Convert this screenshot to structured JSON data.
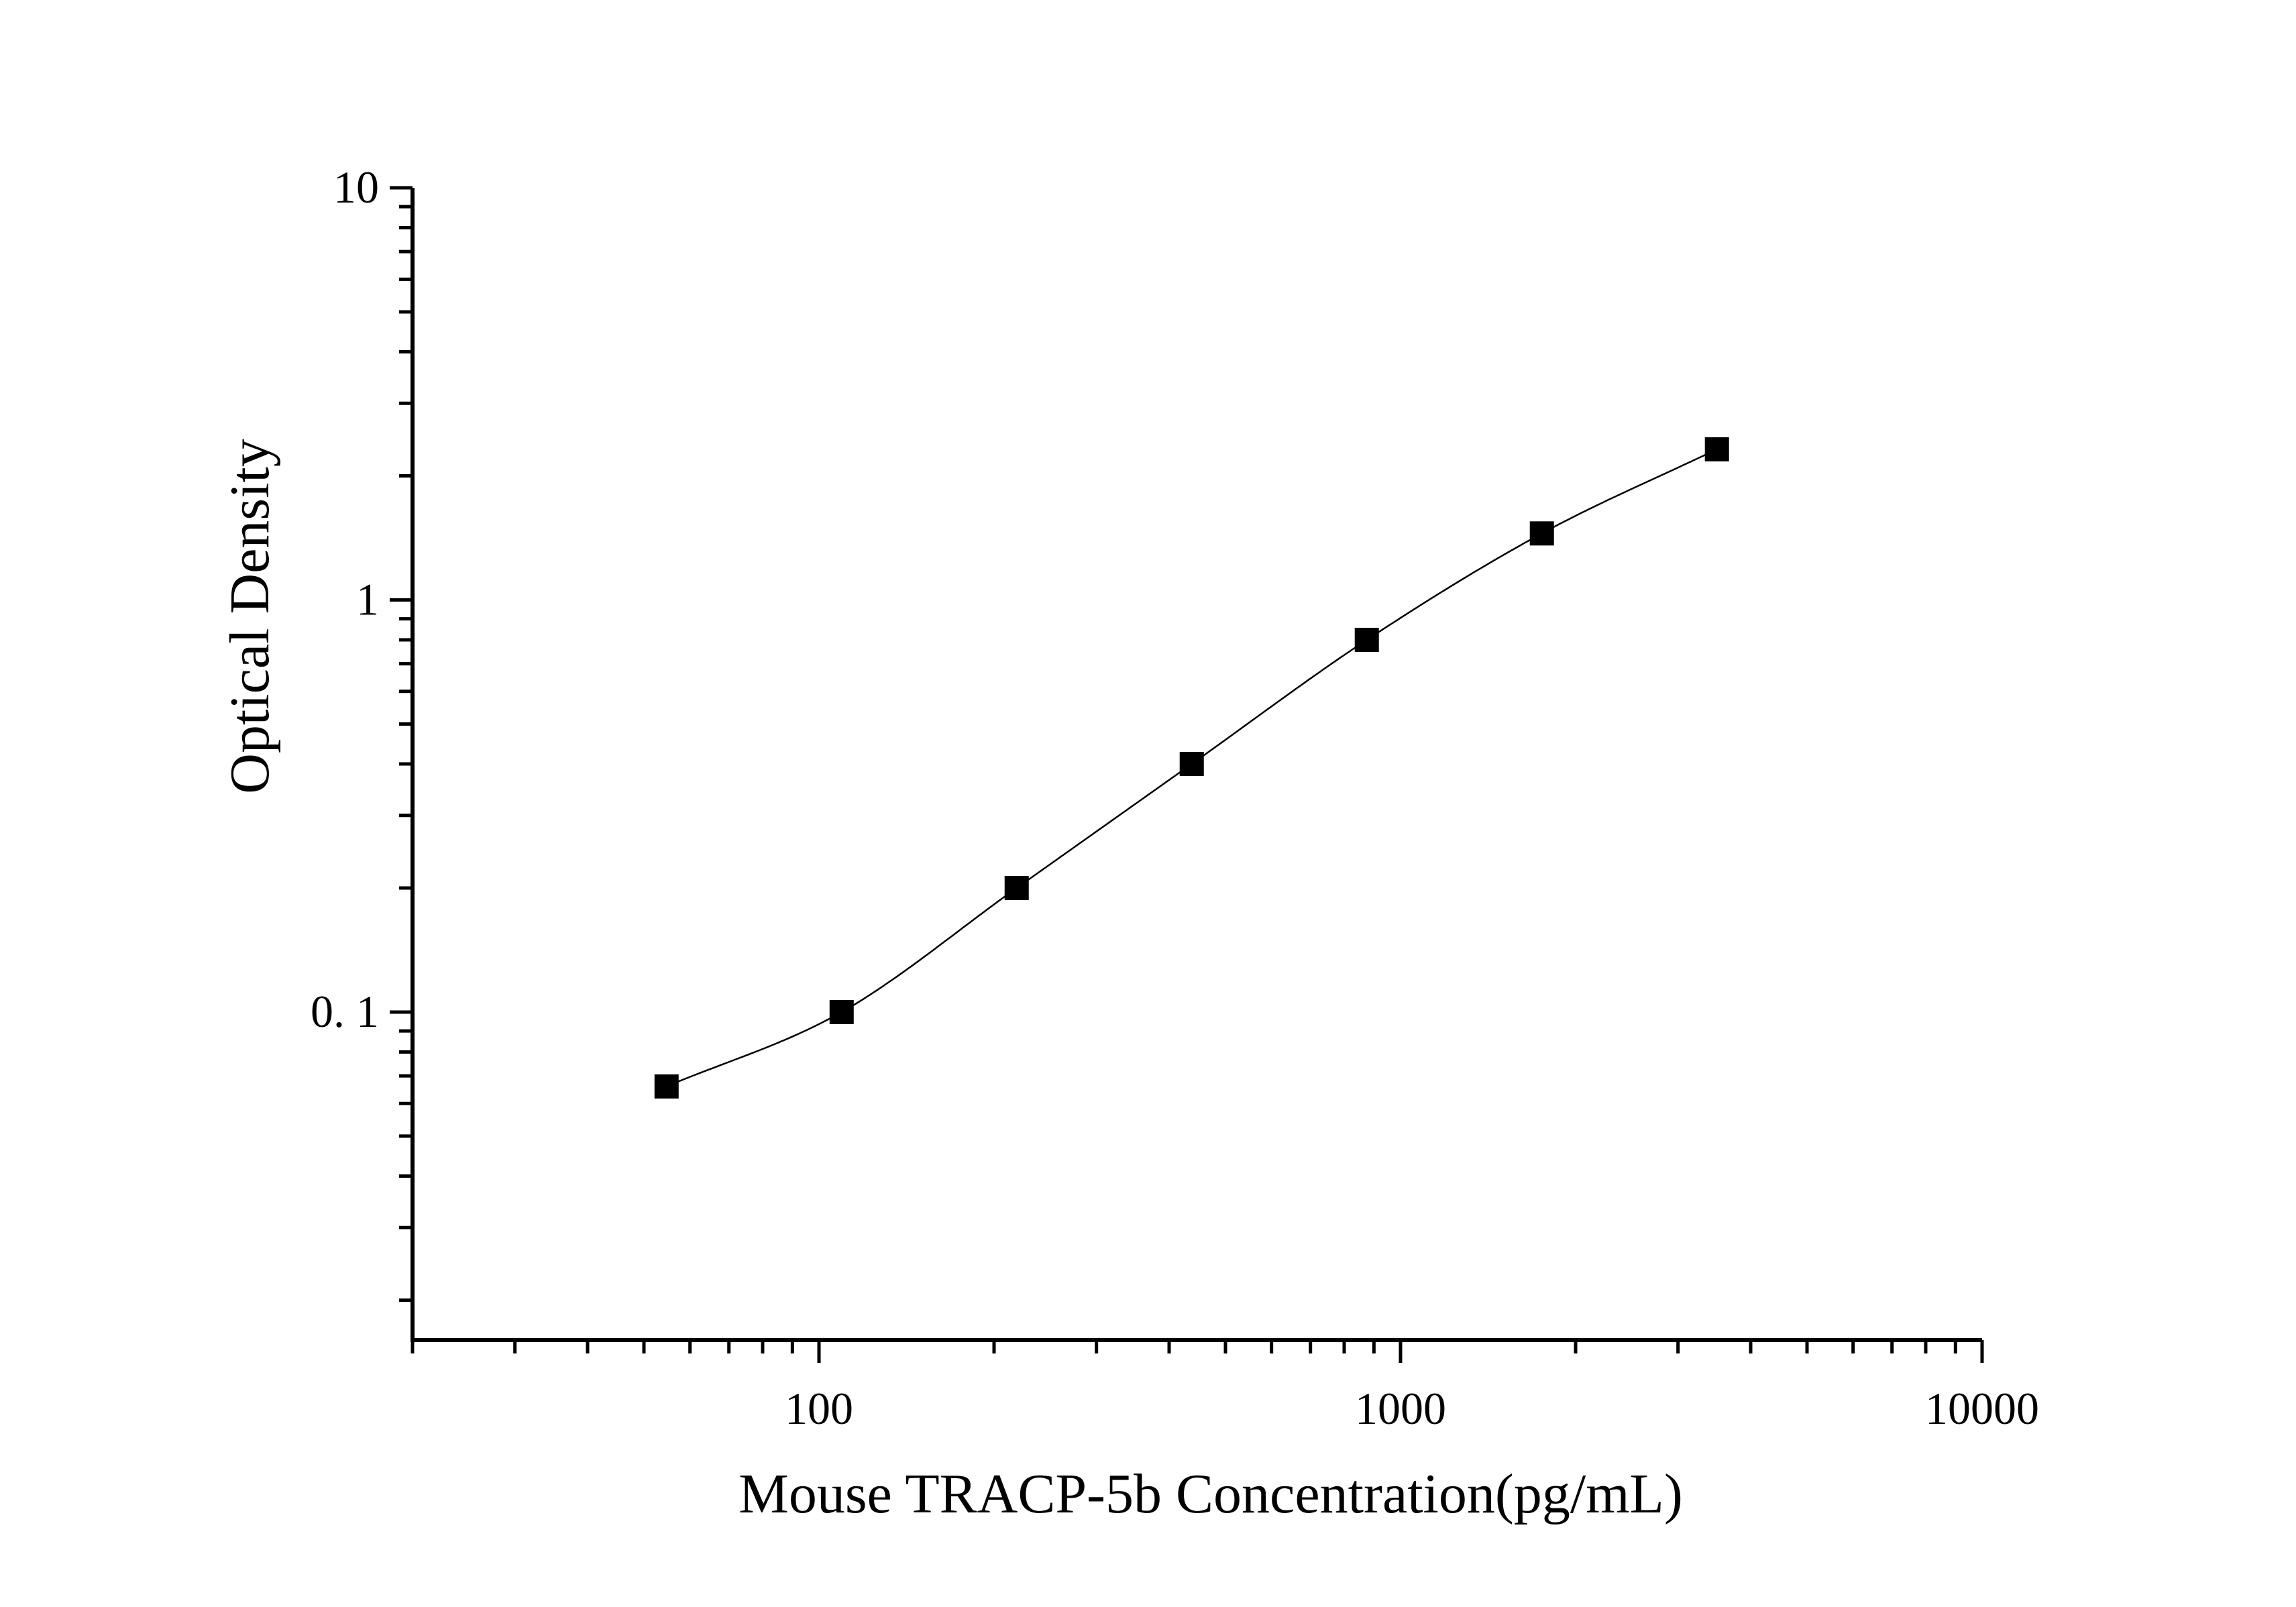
{
  "chart_data": {
    "type": "scatter",
    "title": "",
    "xlabel": "Mouse TRACP-5b Concentration(pg/mL)",
    "ylabel": "Optical Density",
    "xscale": "log",
    "yscale": "log",
    "xlim": [
      20,
      10000
    ],
    "ylim": [
      0.016,
      10
    ],
    "grid": false,
    "x_ticks": [
      {
        "value": 100,
        "label": "100"
      },
      {
        "value": 1000,
        "label": "1000"
      },
      {
        "value": 10000,
        "label": "10000"
      }
    ],
    "y_ticks": [
      {
        "value": 0.1,
        "label": "0. 1"
      },
      {
        "value": 1,
        "label": "1"
      },
      {
        "value": 10,
        "label": "10"
      }
    ],
    "series": [
      {
        "marker": "square",
        "color": "#000000",
        "x": [
          54.69,
          109.38,
          218.75,
          437.5,
          875,
          1750,
          3500
        ],
        "y": [
          0.066,
          0.1,
          0.2,
          0.4,
          0.8,
          1.45,
          2.32
        ]
      }
    ],
    "fit_curve": {
      "type": "4-parameter logistic",
      "color": "#000000"
    }
  }
}
